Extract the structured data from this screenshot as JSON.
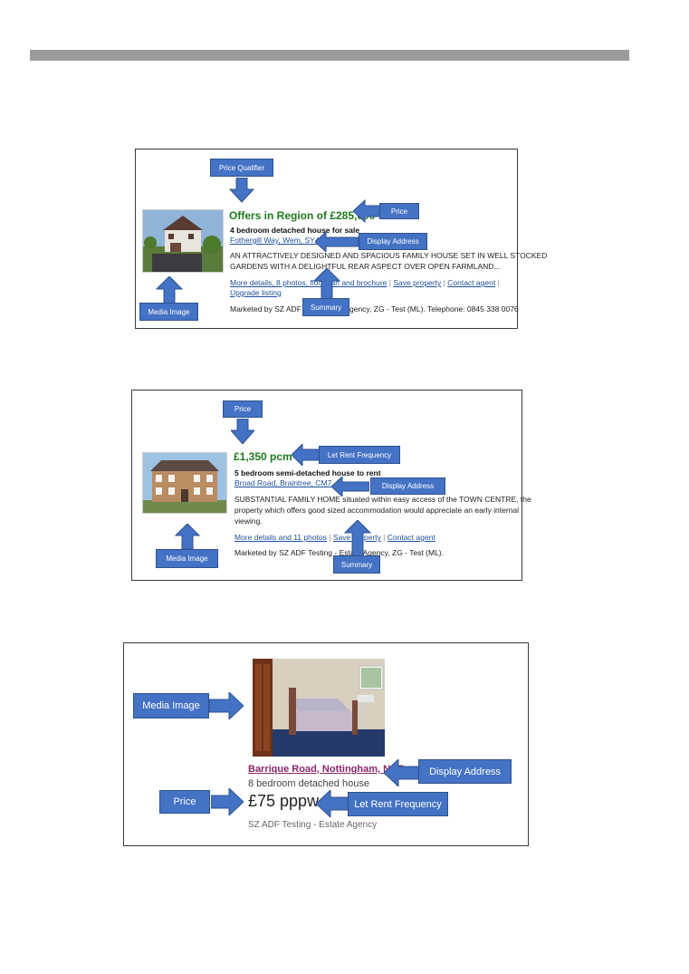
{
  "panel1": {
    "price": "Offers in Region of £285,000",
    "headline": "4 bedroom detached house for sale",
    "address": "Fothergill Way, Wem, SY4",
    "summary_line1": "AN ATTRACTIVELY DESIGNED AND SPACIOUS FAMILY HOUSE SET IN WELL STOCKED",
    "summary_line2": "GARDENS WITH A DELIGHTFUL REAR ASPECT OVER OPEN FARMLAND...",
    "link_details": "More details, 8 photos, floorplan and brochure",
    "link_save": "Save property",
    "link_contact": "Contact agent",
    "link_upgrade": "Upgrade listing",
    "marketed_prefix": "Marketed by SZ ADF Te",
    "marketed_suffix": "gency, ZG - Test (ML). Telephone: 0845 338 0076",
    "callouts": {
      "price_qualifier": "Price Qualifier",
      "price": "Price",
      "display_address": "Display Address",
      "media_image": "Media Image",
      "summary": "Summary"
    }
  },
  "panel2": {
    "price": "£1,350 pcm",
    "headline": "5 bedroom semi-detached house to rent",
    "address": "Broad Road, Braintree, CM7",
    "summary_line1": "SUBSTANTIAL FAMILY HOME situated within easy access of the TOWN CENTRE, the",
    "summary_line2": "property which offers good sized accommodation would appreciate an early internal",
    "summary_line3": "viewing.",
    "link_details": "More details and 11 photos",
    "link_save": "Save property",
    "link_contact": "Contact agent",
    "marketed": "Marketed by SZ ADF Testing - Estate Agency, ZG - Test (ML).",
    "callouts": {
      "price": "Price",
      "let_rent_frequency": "Let Rent Frequency",
      "display_address": "Display Address",
      "media_image": "Media Image",
      "summary": "Summary"
    }
  },
  "panel3": {
    "address": "Barrique Road, Nottingham, NG7",
    "headline": "8 bedroom detached house",
    "price": "£75 pppw",
    "agent": "SZ ADF Testing - Estate Agency",
    "callouts": {
      "media_image": "Media Image",
      "display_address": "Display Address",
      "price": "Price",
      "let_rent_frequency": "Let Rent Frequency"
    }
  },
  "colors": {
    "callout_fill": "#4472c4",
    "price_green": "#1e7a1e",
    "link_blue": "#1f4f9a",
    "link_purple": "#8b2868"
  }
}
